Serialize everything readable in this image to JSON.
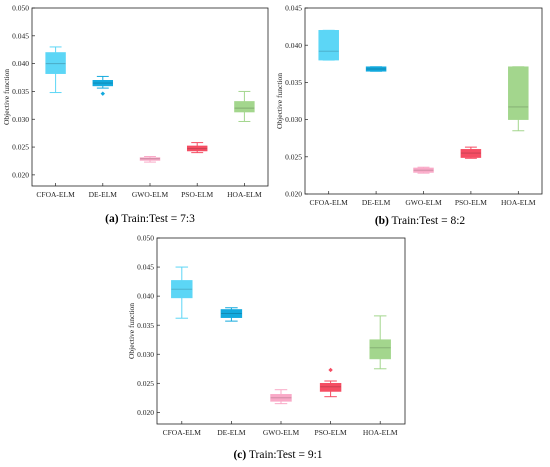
{
  "chart_data": [
    {
      "type": "box",
      "caption_label": "(a)",
      "caption_text": "Train:Test = 7:3",
      "ylabel": "Objective function",
      "ylim": [
        0.018,
        0.05
      ],
      "yticks": [
        "0.020",
        "0.025",
        "0.030",
        "0.035",
        "0.040",
        "0.045",
        "0.050"
      ],
      "categories": [
        "CFOA-ELM",
        "DE-ELM",
        "GWO-ELM",
        "PSO-ELM",
        "HOA-ELM"
      ],
      "colors": [
        "#5cd6f6",
        "#13a9dd",
        "#f9a9c7",
        "#f54d63",
        "#a3d68d"
      ],
      "boxes": [
        {
          "whislo": 0.0348,
          "q1": 0.0382,
          "med": 0.04,
          "q3": 0.042,
          "whishi": 0.043,
          "fliers": []
        },
        {
          "whislo": 0.0356,
          "q1": 0.036,
          "med": 0.0365,
          "q3": 0.037,
          "whishi": 0.0377,
          "fliers": [
            0.0346
          ]
        },
        {
          "whislo": 0.0223,
          "q1": 0.0226,
          "med": 0.0229,
          "q3": 0.0231,
          "whishi": 0.0233,
          "fliers": []
        },
        {
          "whislo": 0.024,
          "q1": 0.0243,
          "med": 0.0247,
          "q3": 0.0252,
          "whishi": 0.0258,
          "fliers": []
        },
        {
          "whislo": 0.0296,
          "q1": 0.0313,
          "med": 0.032,
          "q3": 0.0332,
          "whishi": 0.035,
          "fliers": []
        }
      ]
    },
    {
      "type": "box",
      "caption_label": "(b)",
      "caption_text": "Train:Test = 8:2",
      "ylabel": "Objective function",
      "ylim": [
        0.02,
        0.045
      ],
      "yticks": [
        "0.020",
        "0.025",
        "0.030",
        "0.035",
        "0.040",
        "0.045"
      ],
      "categories": [
        "CFOA-ELM",
        "DE-ELM",
        "GWO-ELM",
        "PSO-ELM",
        "HOA-ELM"
      ],
      "colors": [
        "#5cd6f6",
        "#13a9dd",
        "#f9a9c7",
        "#f54d63",
        "#a3d68d"
      ],
      "boxes": [
        {
          "whislo": 0.038,
          "q1": 0.038,
          "med": 0.0392,
          "q3": 0.042,
          "whishi": 0.042,
          "fliers": []
        },
        {
          "whislo": 0.0365,
          "q1": 0.0365,
          "med": 0.0368,
          "q3": 0.0371,
          "whishi": 0.0371,
          "fliers": []
        },
        {
          "whislo": 0.0228,
          "q1": 0.0229,
          "med": 0.0232,
          "q3": 0.0235,
          "whishi": 0.0236,
          "fliers": []
        },
        {
          "whislo": 0.0248,
          "q1": 0.0249,
          "med": 0.0255,
          "q3": 0.026,
          "whishi": 0.0263,
          "fliers": []
        },
        {
          "whislo": 0.0285,
          "q1": 0.03,
          "med": 0.0317,
          "q3": 0.0371,
          "whishi": 0.0371,
          "fliers": []
        }
      ]
    },
    {
      "type": "box",
      "caption_label": "(c)",
      "caption_text": "Train:Test = 9:1",
      "ylabel": "Objective function",
      "ylim": [
        0.018,
        0.05
      ],
      "yticks": [
        "0.020",
        "0.025",
        "0.030",
        "0.035",
        "0.040",
        "0.045",
        "0.050"
      ],
      "categories": [
        "CFOA-ELM",
        "DE-ELM",
        "GWO-ELM",
        "PSO-ELM",
        "HOA-ELM"
      ],
      "colors": [
        "#5cd6f6",
        "#13a9dd",
        "#f9a9c7",
        "#f54d63",
        "#a3d68d"
      ],
      "boxes": [
        {
          "whislo": 0.0362,
          "q1": 0.0397,
          "med": 0.0412,
          "q3": 0.0427,
          "whishi": 0.045,
          "fliers": []
        },
        {
          "whislo": 0.0357,
          "q1": 0.0363,
          "med": 0.037,
          "q3": 0.0377,
          "whishi": 0.038,
          "fliers": []
        },
        {
          "whislo": 0.0215,
          "q1": 0.0219,
          "med": 0.0225,
          "q3": 0.0231,
          "whishi": 0.0239,
          "fliers": []
        },
        {
          "whislo": 0.0227,
          "q1": 0.0236,
          "med": 0.0244,
          "q3": 0.025,
          "whishi": 0.0254,
          "fliers": [
            0.0273
          ]
        },
        {
          "whislo": 0.0275,
          "q1": 0.0292,
          "med": 0.0311,
          "q3": 0.0325,
          "whishi": 0.0366,
          "fliers": []
        }
      ]
    }
  ]
}
